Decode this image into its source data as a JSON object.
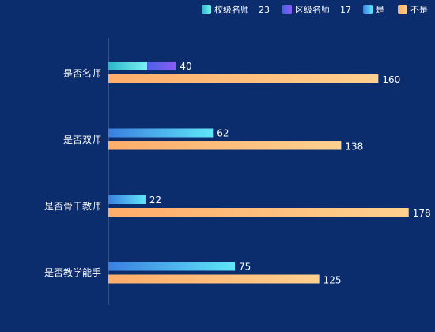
{
  "chart_data": {
    "type": "bar",
    "orientation": "horizontal",
    "categories": [
      "是否名师",
      "是否双师",
      "是否骨干教师",
      "是否教学能手"
    ],
    "xlim": [
      0,
      180
    ],
    "grid": false,
    "legend_position": "top-right",
    "legend": [
      {
        "name": "校级名师",
        "value": "23",
        "color": "#3fd9e6"
      },
      {
        "name": "区级名师",
        "value": "17",
        "color": "#6a5cf0"
      },
      {
        "name": "是",
        "value": "",
        "color": "#4cc3f7"
      },
      {
        "name": "不是",
        "value": "",
        "color": "#ffb877"
      }
    ],
    "series": [
      {
        "name": "校级名师",
        "stack": "yes",
        "values": [
          23,
          null,
          null,
          null
        ],
        "color": "#3fd9e6"
      },
      {
        "name": "区级名师",
        "stack": "yes",
        "values": [
          17,
          null,
          null,
          null
        ],
        "color": "#6a5cf0"
      },
      {
        "name": "是",
        "stack": "yes",
        "values": [
          null,
          62,
          22,
          75
        ],
        "color": "#4cc3f7"
      },
      {
        "name": "不是",
        "stack": "no",
        "values": [
          160,
          138,
          178,
          125
        ],
        "color": "#ffb877"
      }
    ],
    "data_labels": {
      "yes_totals": [
        "40",
        "62",
        "22",
        "75"
      ],
      "no_values": [
        "160",
        "138",
        "178",
        "125"
      ]
    }
  }
}
